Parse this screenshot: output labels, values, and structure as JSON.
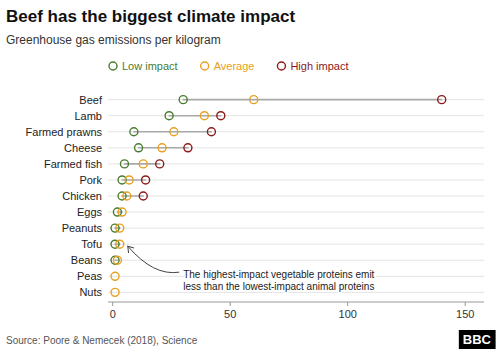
{
  "chart_data": {
    "type": "dumbbell",
    "orientation": "horizontal",
    "title": "Beef has the biggest climate impact",
    "subtitle": "Greenhouse gas emissions per kilogram",
    "categories": [
      "Beef",
      "Lamb",
      "Farmed prawns",
      "Cheese",
      "Farmed fish",
      "Pork",
      "Chicken",
      "Eggs",
      "Peanuts",
      "Tofu",
      "Beans",
      "Peas",
      "Nuts"
    ],
    "series": [
      {
        "name": "Low impact",
        "color": "#4a7c2f",
        "values": [
          30,
          24,
          9,
          11,
          5,
          4,
          4,
          2,
          1,
          1,
          1,
          null,
          null
        ]
      },
      {
        "name": "Average",
        "color": "#e8a020",
        "values": [
          60,
          39,
          26,
          21,
          13,
          7,
          6,
          4,
          3,
          3,
          2,
          1,
          1
        ]
      },
      {
        "name": "High impact",
        "color": "#8b1a1a",
        "values": [
          140,
          46,
          42,
          32,
          20,
          14,
          13,
          null,
          null,
          null,
          null,
          null,
          null
        ]
      }
    ],
    "color": "#aaaaaa",
    "marker": "circle",
    "xlim": [
      -2,
      158
    ],
    "xticks": [
      0,
      50,
      100,
      150
    ],
    "grid": true,
    "legend": "top",
    "annotation": {
      "text": "The highest-impact vegetable proteins emit\nless than the lowest-impact animal proteins",
      "category": "Tofu"
    },
    "source": "Source: Poore & Nemecek (2018), Science",
    "logo": "BBC"
  }
}
